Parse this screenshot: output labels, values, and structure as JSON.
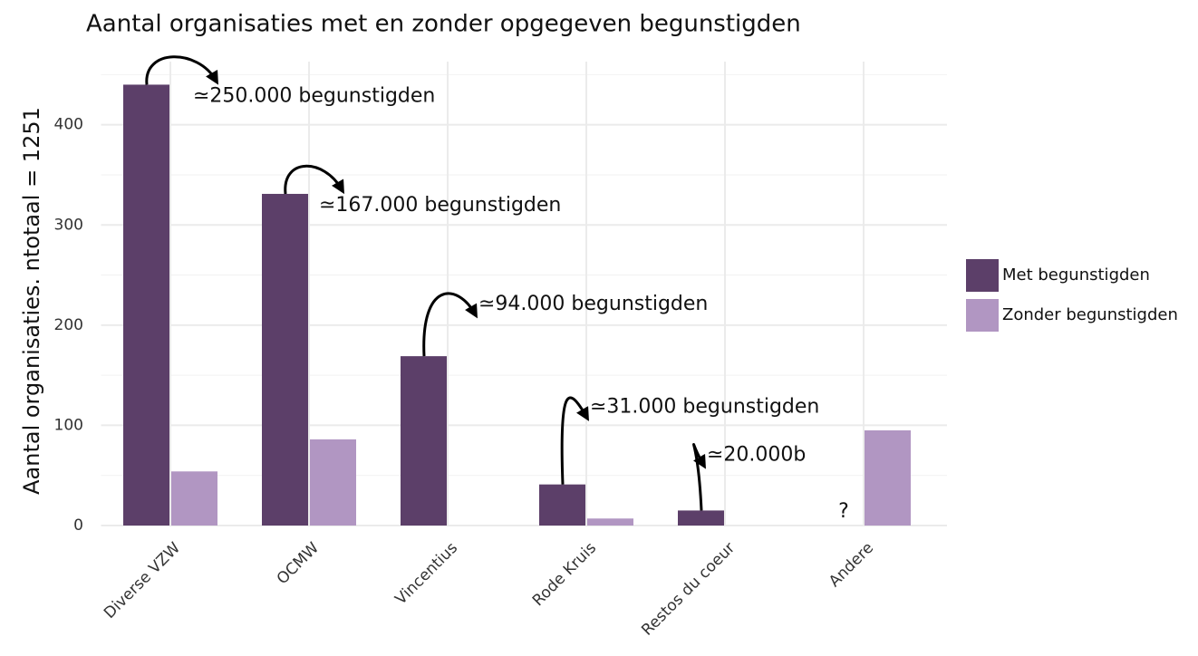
{
  "chart_data": {
    "type": "bar",
    "title": "Aantal organisaties met en zonder opgegeven begunstigden",
    "y_label": "Aantal organisaties. ntotaal = 1251",
    "categories": [
      "Diverse VZW",
      "OCMW",
      "Vincentius",
      "Rode Kruis",
      "Restos du coeur",
      "Andere"
    ],
    "series": [
      {
        "name": "Met begunstigden",
        "color": "#5c3f69",
        "values": [
          440,
          331,
          169,
          41,
          15,
          null
        ]
      },
      {
        "name": "Zonder begunstigden",
        "color": "#b196c2",
        "values": [
          54,
          86,
          null,
          7,
          null,
          95
        ]
      }
    ],
    "annotations": [
      "≃250.000 begunstigden",
      "≃167.000 begunstigden",
      "≃94.000 begunstigden",
      "≃31.000 begunstigden",
      "≃20.000b",
      "?"
    ],
    "ylim": [
      0,
      463
    ],
    "yticks": [
      0,
      100,
      200,
      300,
      400
    ],
    "grid": true,
    "legend": "right"
  }
}
